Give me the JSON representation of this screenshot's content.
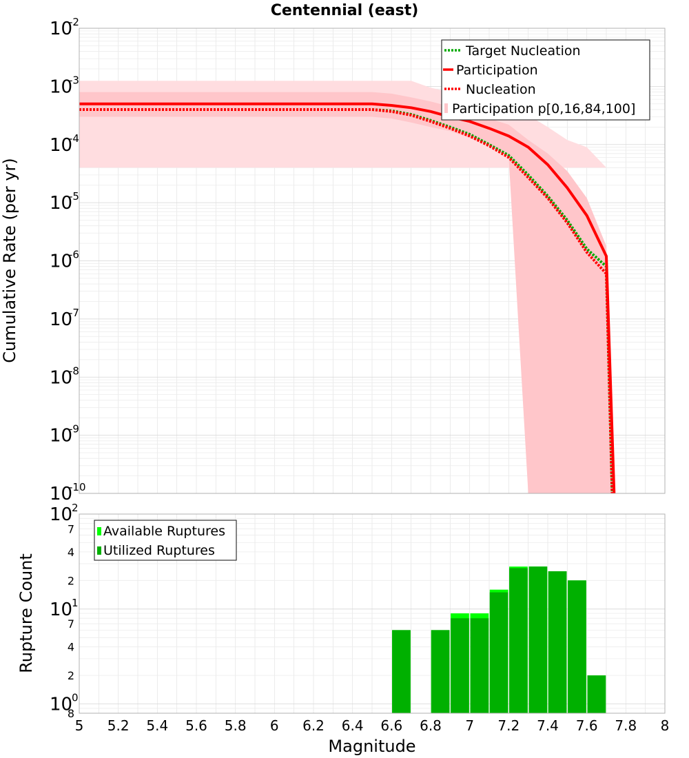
{
  "chart_data": [
    {
      "type": "line",
      "title": "Centennial (east)",
      "ylabel": "Cumulative Rate (per yr)",
      "xlim": [
        5,
        8
      ],
      "ylim": [
        1e-10,
        0.01
      ],
      "yscale": "log",
      "grid": true,
      "legend_position": "top-right",
      "y_tick_labels": [
        {
          "base": "10",
          "exp": "-10"
        },
        {
          "base": "10",
          "exp": "-9"
        },
        {
          "base": "10",
          "exp": "-8"
        },
        {
          "base": "10",
          "exp": "-7"
        },
        {
          "base": "10",
          "exp": "-6"
        },
        {
          "base": "10",
          "exp": "-5"
        },
        {
          "base": "10",
          "exp": "-4"
        },
        {
          "base": "10",
          "exp": "-3"
        },
        {
          "base": "10",
          "exp": "-2"
        }
      ],
      "bands": [
        {
          "name": "Participation p[0,100]",
          "color": "#ffdde0",
          "x": [
            5.0,
            6.5,
            6.6,
            6.7,
            6.8,
            6.9,
            7.0,
            7.1,
            7.2,
            7.3,
            7.4,
            7.5,
            7.6,
            7.7,
            7.7,
            7.25,
            7.25,
            5.0
          ],
          "upper": [
            0.00125,
            0.00125,
            0.00125,
            0.00125,
            0.00095,
            0.0008,
            0.0006,
            0.0005,
            0.00045,
            0.00032,
            0.0002,
            0.00012,
            9e-05,
            4e-05,
            4e-05,
            4e-05,
            4e-05,
            4e-05
          ],
          "lower": [
            1e-10,
            1e-10,
            1e-10,
            1e-10,
            1e-10,
            1e-10,
            1e-10,
            1e-10,
            1e-10,
            1e-10,
            1e-10,
            1e-10,
            1e-10,
            1e-10,
            1e-10,
            1e-10,
            1e-10,
            1e-10
          ]
        },
        {
          "name": "Participation p[16,84]",
          "color": "#ffc6ca",
          "x": [
            5.0,
            6.5,
            6.6,
            6.7,
            6.8,
            6.9,
            7.0,
            7.1,
            7.2,
            7.3,
            7.4,
            7.5,
            7.6,
            7.7,
            7.73
          ],
          "upper": [
            0.0008,
            0.0008,
            0.00075,
            0.00065,
            0.00055,
            0.00045,
            0.00038,
            0.00028,
            0.00022,
            0.00012,
            7e-05,
            3.5e-05,
            1.2e-05,
            1.8e-06,
            1e-10
          ],
          "lower": [
            0.0003,
            0.0003,
            0.00028,
            0.00024,
            0.0002,
            0.00017,
            0.00013,
            0.0001,
            6e-05,
            1e-10,
            1e-10,
            1e-10,
            1e-10,
            1e-10,
            1e-10
          ]
        }
      ],
      "series": [
        {
          "name": "Target Nucleation",
          "color": "#00aa00",
          "dash": "dotted",
          "x": [
            5.0,
            6.5,
            6.6,
            6.7,
            6.8,
            6.9,
            7.0,
            7.1,
            7.2,
            7.3,
            7.4,
            7.5,
            7.6,
            7.7,
            7.73
          ],
          "y": [
            0.0004,
            0.0004,
            0.00038,
            0.00033,
            0.00026,
            0.0002,
            0.00015,
            0.0001,
            6.5e-05,
            3e-05,
            1.3e-05,
            5e-06,
            1.6e-06,
            8e-07,
            1e-10
          ]
        },
        {
          "name": "Participation",
          "color": "#ff0000",
          "dash": "solid",
          "x": [
            5.0,
            6.5,
            6.6,
            6.7,
            6.8,
            6.9,
            7.0,
            7.1,
            7.2,
            7.3,
            7.4,
            7.5,
            7.6,
            7.7,
            7.74
          ],
          "y": [
            0.0005,
            0.0005,
            0.00047,
            0.00043,
            0.00037,
            0.0003,
            0.00025,
            0.00019,
            0.00014,
            9e-05,
            4.5e-05,
            1.8e-05,
            6e-06,
            1.2e-06,
            1e-10
          ]
        },
        {
          "name": "Nucleation",
          "color": "#ff0000",
          "dash": "dotted",
          "x": [
            5.0,
            6.5,
            6.6,
            6.7,
            6.8,
            6.9,
            7.0,
            7.1,
            7.2,
            7.3,
            7.4,
            7.5,
            7.6,
            7.7,
            7.73
          ],
          "y": [
            0.0004,
            0.0004,
            0.00037,
            0.00032,
            0.00025,
            0.00019,
            0.00014,
            9.5e-05,
            6e-05,
            2.7e-05,
            1.2e-05,
            4.5e-06,
            1.4e-06,
            6e-07,
            1e-10
          ]
        }
      ],
      "legend": [
        {
          "label": "Target Nucleation",
          "color": "#00aa00",
          "style": "dotted"
        },
        {
          "label": "Participation",
          "color": "#ff0000",
          "style": "solid"
        },
        {
          "label": "Nucleation",
          "color": "#ff0000",
          "style": "dotted"
        },
        {
          "label": "Participation p[0,16,84,100]",
          "color": "#ffc6ca",
          "style": "band"
        }
      ]
    },
    {
      "type": "bar",
      "ylabel": "Rupture Count",
      "xlabel": "Magnitude",
      "xlim": [
        5,
        8
      ],
      "ylim": [
        0.8,
        100
      ],
      "yscale": "log",
      "grid": true,
      "legend_position": "top-left",
      "x_ticks": [
        5,
        5.2,
        5.4,
        5.6,
        5.8,
        6,
        6.2,
        6.4,
        6.6,
        6.8,
        7,
        7.2,
        7.4,
        7.6,
        7.8,
        8
      ],
      "x_tick_labels": [
        "5",
        "5.2",
        "5.4",
        "5.6",
        "5.8",
        "6",
        "6.2",
        "6.4",
        "6.6",
        "6.8",
        "7",
        "7.2",
        "7.4",
        "7.6",
        "7.8",
        "8"
      ],
      "y_major_labels": [
        {
          "value": 1,
          "base": "10",
          "exp": "0"
        },
        {
          "value": 10,
          "base": "10",
          "exp": "1"
        },
        {
          "value": 100,
          "base": "10",
          "exp": "2"
        }
      ],
      "y_minor_labels": [
        {
          "value": 0.8,
          "label": "8"
        },
        {
          "value": 2,
          "label": "2"
        },
        {
          "value": 4,
          "label": "4"
        },
        {
          "value": 7,
          "label": "7"
        },
        {
          "value": 20,
          "label": "2"
        },
        {
          "value": 40,
          "label": "4"
        },
        {
          "value": 70,
          "label": "7"
        }
      ],
      "bin_width": 0.1,
      "series": [
        {
          "name": "Available Ruptures",
          "color": "#00ff00",
          "x": [
            6.65,
            6.85,
            6.95,
            7.05,
            7.15,
            7.25,
            7.35,
            7.45,
            7.55,
            7.65
          ],
          "values": [
            6,
            6,
            9,
            9,
            16,
            28,
            28,
            25,
            20,
            2
          ]
        },
        {
          "name": "Utilized Ruptures",
          "color": "#00b000",
          "x": [
            6.65,
            6.85,
            6.95,
            7.05,
            7.15,
            7.25,
            7.35,
            7.45,
            7.55,
            7.65
          ],
          "values": [
            6,
            6,
            8,
            8,
            15,
            27,
            28,
            25,
            20,
            2
          ]
        }
      ],
      "legend": [
        {
          "label": "Available Ruptures",
          "color": "#00ff00"
        },
        {
          "label": "Utilized Ruptures",
          "color": "#00b000"
        }
      ]
    }
  ]
}
